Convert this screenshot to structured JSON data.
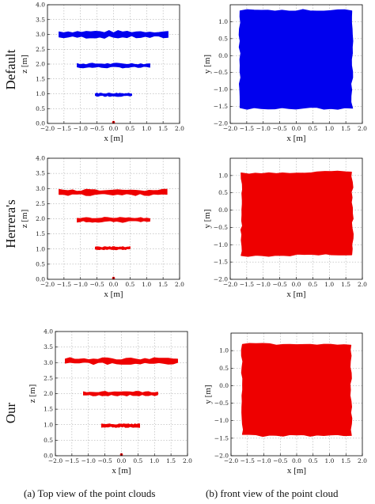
{
  "row_labels": [
    "Default",
    "Herrera's",
    "Our"
  ],
  "captions": [
    "(a)  Top view of the point clouds",
    "(b)  front view of the point cloud"
  ],
  "colors": {
    "default": "#0000ee",
    "herrera": "#ee0000",
    "our": "#ee0000"
  },
  "chart_data": [
    {
      "type": "scatter",
      "row": 0,
      "col": 0,
      "marker_color": "#0000ee",
      "xlabel": "x [m]",
      "ylabel": "z [m]",
      "xlim": [
        -2.0,
        2.0
      ],
      "ylim": [
        0.0,
        4.0
      ],
      "xticks": [
        "−2.0",
        "−1.5",
        "−1.0",
        "−0.5",
        "0.0",
        "0.5",
        "1.0",
        "1.5",
        "2.0"
      ],
      "yticks": [
        "0.0",
        "0.5",
        "1.0",
        "1.5",
        "2.0",
        "2.5",
        "3.0",
        "3.5",
        "4.0"
      ],
      "grid": true,
      "strips": [
        {
          "x_start": -1.65,
          "x_end": 1.65,
          "z": 3.0,
          "thickness": 0.18
        },
        {
          "x_start": -1.1,
          "x_end": 1.1,
          "z": 1.95,
          "thickness": 0.11
        },
        {
          "x_start": -0.55,
          "x_end": 0.55,
          "z": 0.97,
          "thickness": 0.08
        }
      ],
      "origin_marker": {
        "x": 0.0,
        "z": 0.0
      }
    },
    {
      "type": "scatter",
      "row": 0,
      "col": 1,
      "marker_color": "#0000ee",
      "xlabel": "x [m]",
      "ylabel": "y [m]",
      "xlim": [
        -2.0,
        2.0
      ],
      "ylim": [
        -2.0,
        1.5
      ],
      "xticks": [
        "−2.0",
        "−1.5",
        "−1.0",
        "−0.5",
        "0.0",
        "0.5",
        "1.0",
        "1.5",
        "2.0"
      ],
      "yticks": [
        "−2.0",
        "−1.5",
        "−1.0",
        "−0.5",
        "0.0",
        "0.5",
        "1.0"
      ],
      "grid": true,
      "region": {
        "x_min": -1.7,
        "x_max": 1.68,
        "y_min": -1.55,
        "y_max": 1.33
      }
    },
    {
      "type": "scatter",
      "row": 1,
      "col": 0,
      "marker_color": "#ee0000",
      "xlabel": "x [m]",
      "ylabel": "z [m]",
      "xlim": [
        -2.0,
        2.0
      ],
      "ylim": [
        0.0,
        4.0
      ],
      "xticks": [
        "−2.0",
        "−1.5",
        "−1.0",
        "−0.5",
        "0.0",
        "0.5",
        "1.0",
        "1.5",
        "2.0"
      ],
      "yticks": [
        "0.0",
        "0.5",
        "1.0",
        "1.5",
        "2.0",
        "2.5",
        "3.0",
        "3.5",
        "4.0"
      ],
      "grid": true,
      "strips": [
        {
          "x_start": -1.65,
          "x_end": 1.62,
          "z": 2.87,
          "thickness": 0.14
        },
        {
          "x_start": -1.1,
          "x_end": 1.1,
          "z": 1.97,
          "thickness": 0.12
        },
        {
          "x_start": -0.55,
          "x_end": 0.5,
          "z": 1.03,
          "thickness": 0.07
        }
      ],
      "origin_marker": {
        "x": 0.0,
        "z": 0.0
      }
    },
    {
      "type": "scatter",
      "row": 1,
      "col": 1,
      "marker_color": "#ee0000",
      "xlabel": "x [m]",
      "ylabel": "y [m]",
      "xlim": [
        -2.0,
        2.0
      ],
      "ylim": [
        -2.0,
        1.5
      ],
      "xticks": [
        "−2.0",
        "−1.5",
        "−1.0",
        "−0.5",
        "0.0",
        "0.5",
        "1.0",
        "1.5",
        "2.0"
      ],
      "yticks": [
        "−2.0",
        "−1.5",
        "−1.0",
        "−0.5",
        "0.0",
        "0.5",
        "1.0"
      ],
      "grid": true,
      "corners": {
        "top_left": [
          -1.65,
          1.05
        ],
        "top_right": [
          1.68,
          1.12
        ],
        "bottom_right": [
          1.7,
          -1.28
        ],
        "bottom_left": [
          -1.65,
          -1.32
        ]
      }
    },
    {
      "type": "scatter",
      "row": 2,
      "col": 0,
      "marker_color": "#ee0000",
      "xlabel": "x [m]",
      "ylabel": "z [m]",
      "xlim": [
        -2.0,
        2.0
      ],
      "ylim": [
        0.0,
        4.0
      ],
      "xticks": [
        "−2.0",
        "−1.5",
        "−1.0",
        "−0.5",
        "0.0",
        "0.5",
        "1.0",
        "1.5",
        "2.0"
      ],
      "yticks": [
        "0.0",
        "0.5",
        "1.0",
        "1.5",
        "2.0",
        "2.5",
        "3.0",
        "3.5",
        "4.0"
      ],
      "grid": true,
      "strips": [
        {
          "x_start": -1.7,
          "x_end": 1.7,
          "z": 3.05,
          "thickness": 0.15
        },
        {
          "x_start": -1.15,
          "x_end": 1.1,
          "z": 2.0,
          "thickness": 0.1
        },
        {
          "x_start": -0.6,
          "x_end": 0.55,
          "z": 0.97,
          "thickness": 0.08
        }
      ],
      "origin_marker": {
        "x": 0.0,
        "z": 0.0
      }
    },
    {
      "type": "scatter",
      "row": 2,
      "col": 1,
      "marker_color": "#ee0000",
      "xlabel": "x [m]",
      "ylabel": "y [m]",
      "xlim": [
        -2.0,
        2.0
      ],
      "ylim": [
        -2.0,
        1.5
      ],
      "xticks": [
        "−2.0",
        "−1.5",
        "−1.0",
        "−0.5",
        "0.0",
        "0.5",
        "1.0",
        "1.5",
        "2.0"
      ],
      "yticks": [
        "−2.0",
        "−1.5",
        "−1.0",
        "−0.5",
        "0.0",
        "0.5",
        "1.0"
      ],
      "grid": true,
      "region": {
        "x_min": -1.65,
        "x_max": 1.65,
        "y_min": -1.42,
        "y_max": 1.18
      }
    }
  ]
}
